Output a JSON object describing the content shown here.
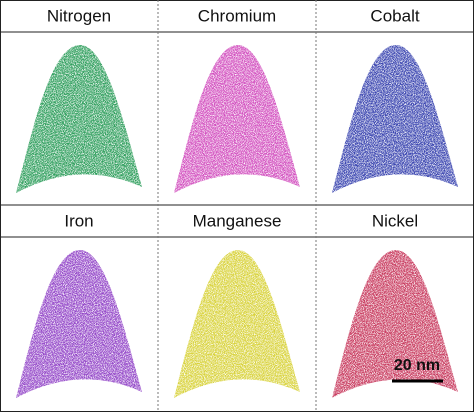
{
  "panels": [
    {
      "label": "Nitrogen",
      "color": "#2e9e5c"
    },
    {
      "label": "Chromium",
      "color": "#d24fbf"
    },
    {
      "label": "Cobalt",
      "color": "#3a45b0"
    },
    {
      "label": "Iron",
      "color": "#9346c8"
    },
    {
      "label": "Manganese",
      "color": "#d8d23a"
    },
    {
      "label": "Nickel",
      "color": "#c83a5e"
    }
  ],
  "scale_bar": {
    "label": "20 nm"
  }
}
